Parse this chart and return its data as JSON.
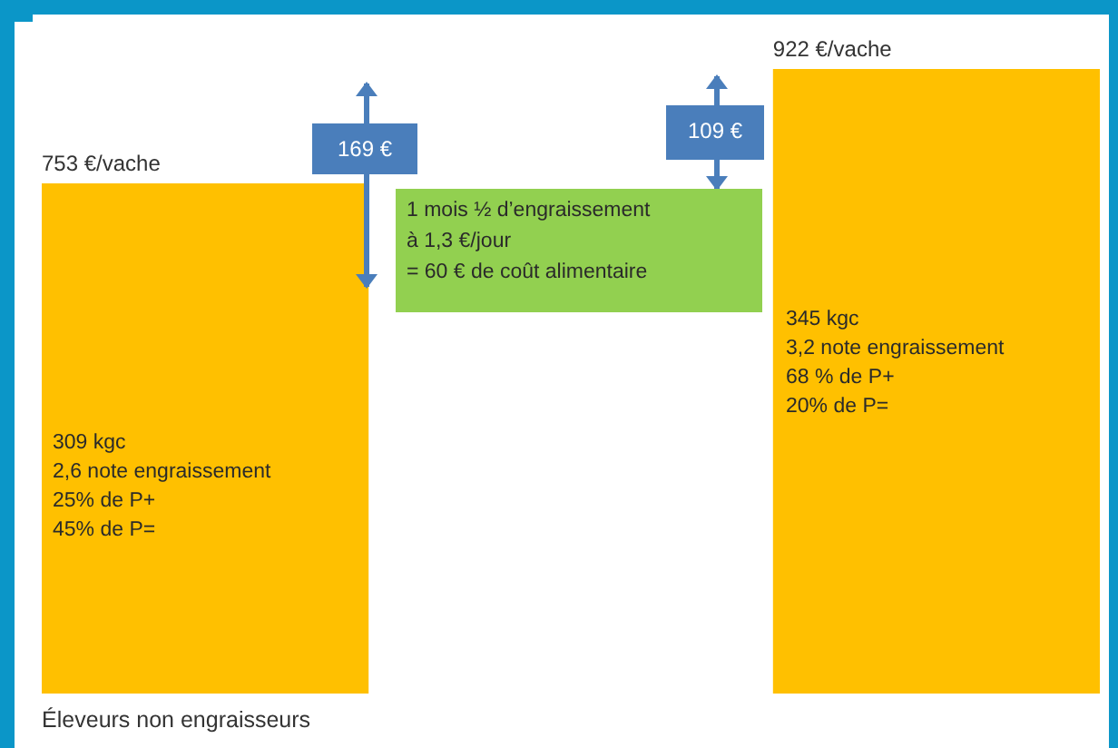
{
  "chart_data": {
    "type": "bar",
    "categories": [
      "Éleveurs non engraisseurs",
      null
    ],
    "values": [
      753,
      922
    ],
    "value_labels": [
      "753 €/vache",
      "922 €/vache"
    ],
    "color": "#ffc000",
    "grid": false,
    "annotations": [
      "169 €",
      "109 €",
      "1 mois ½ d’engraissement\nà 1,3 €/jour\n= 60 € de coût alimentaire",
      "309 kgc\n2,6 note engraissement\n25% de P+\n45% de P=",
      "345 kgc\n3,2 note engraissement\n68 % de P+\n20% de P="
    ]
  }
}
